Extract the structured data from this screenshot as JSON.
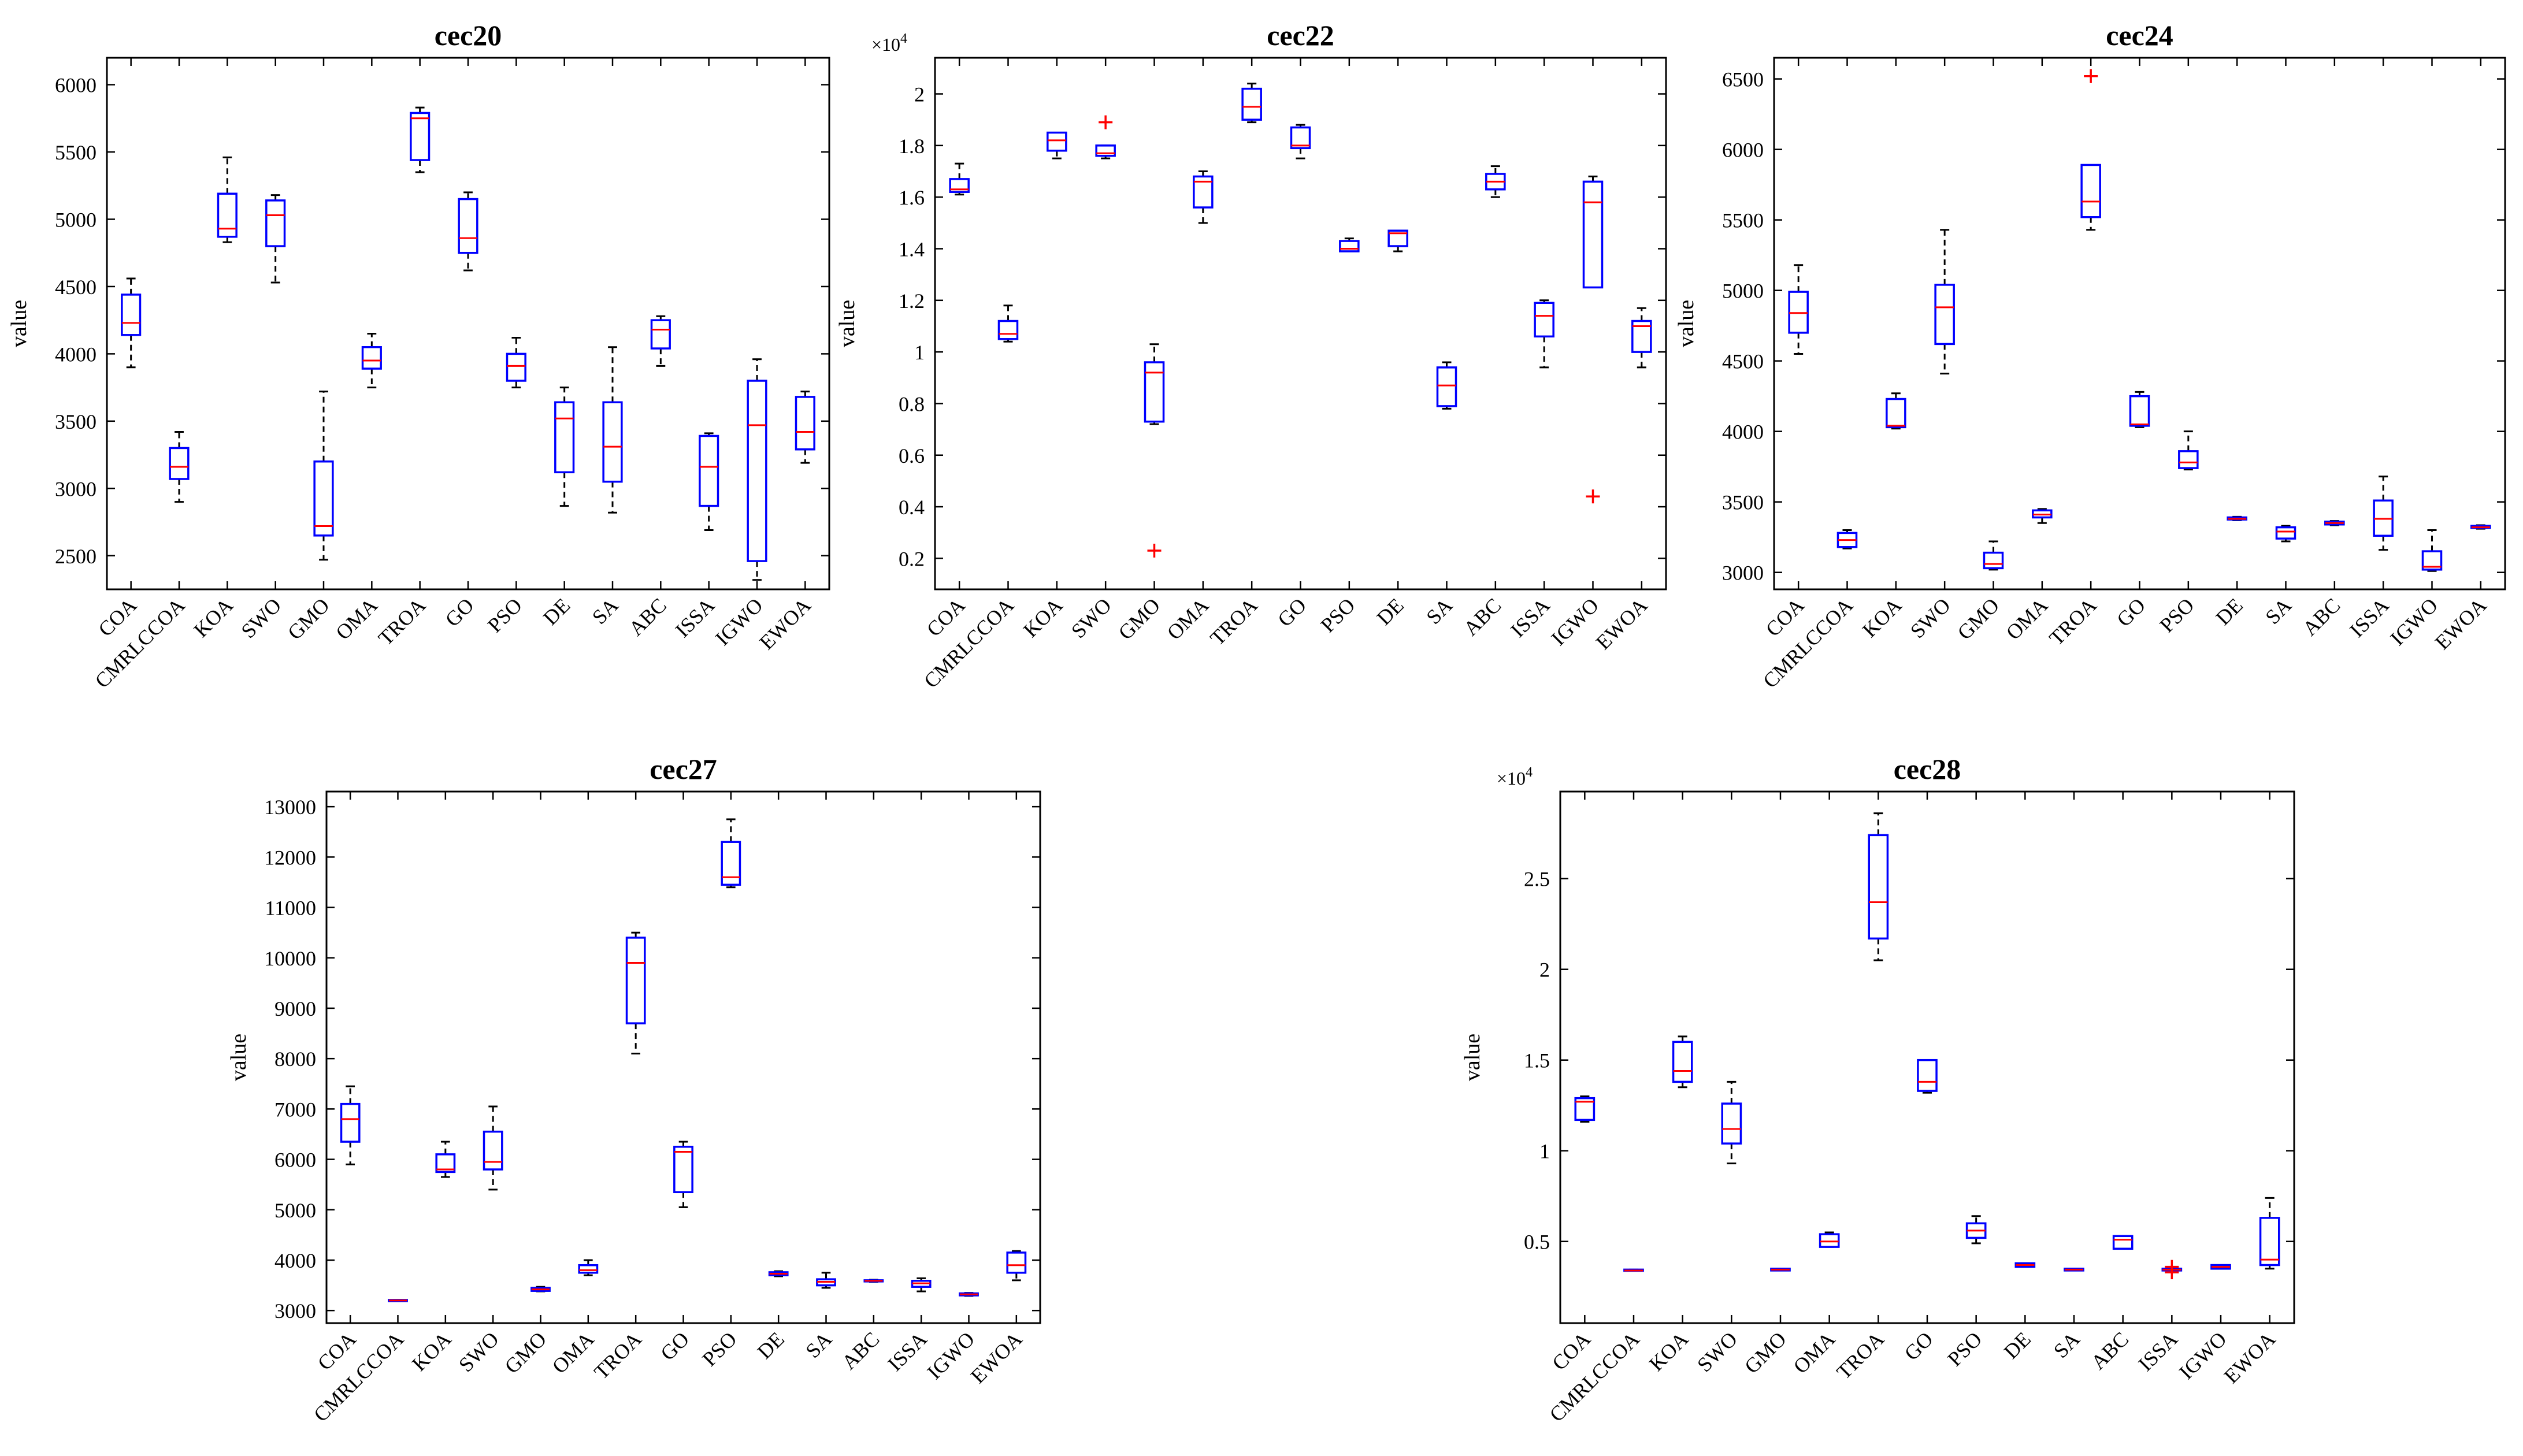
{
  "figure": {
    "ylabel": "value",
    "exponent_label": "×10",
    "exponent_power": "4"
  },
  "colors": {
    "box": "#0000ff",
    "median": "#ff0000",
    "whisker": "#000000",
    "outlier": "#ff0000",
    "axis": "#000000"
  },
  "chart_data": [
    {
      "type": "box",
      "title": "cec20",
      "ylabel": "value",
      "ylim": [
        2250,
        6200
      ],
      "yticks": [
        2500,
        3000,
        3500,
        4000,
        4500,
        5000,
        5500,
        6000
      ],
      "ytick_labels": [
        "2500",
        "3000",
        "3500",
        "4000",
        "4500",
        "5000",
        "5500",
        "6000"
      ],
      "scale_label": "",
      "categories": [
        "COA",
        "CMRLCCOA",
        "KOA",
        "SWO",
        "GMO",
        "OMA",
        "TROA",
        "GO",
        "PSO",
        "DE",
        "SA",
        "ABC",
        "ISSA",
        "IGWO",
        "EWOA"
      ],
      "boxes": [
        {
          "min": 3900,
          "q1": 4140,
          "median": 4230,
          "q3": 4440,
          "max": 4560,
          "outliers": []
        },
        {
          "min": 2900,
          "q1": 3070,
          "median": 3160,
          "q3": 3300,
          "max": 3420,
          "outliers": []
        },
        {
          "min": 4830,
          "q1": 4870,
          "median": 4930,
          "q3": 5190,
          "max": 5460,
          "outliers": []
        },
        {
          "min": 4530,
          "q1": 4800,
          "median": 5030,
          "q3": 5140,
          "max": 5180,
          "outliers": []
        },
        {
          "min": 2470,
          "q1": 2650,
          "median": 2720,
          "q3": 3200,
          "max": 3720,
          "outliers": []
        },
        {
          "min": 3750,
          "q1": 3890,
          "median": 3950,
          "q3": 4050,
          "max": 4150,
          "outliers": []
        },
        {
          "min": 5350,
          "q1": 5440,
          "median": 5750,
          "q3": 5790,
          "max": 5830,
          "outliers": []
        },
        {
          "min": 4620,
          "q1": 4750,
          "median": 4860,
          "q3": 5150,
          "max": 5200,
          "outliers": []
        },
        {
          "min": 3750,
          "q1": 3800,
          "median": 3910,
          "q3": 4000,
          "max": 4120,
          "outliers": []
        },
        {
          "min": 2870,
          "q1": 3120,
          "median": 3520,
          "q3": 3640,
          "max": 3750,
          "outliers": []
        },
        {
          "min": 2820,
          "q1": 3050,
          "median": 3310,
          "q3": 3640,
          "max": 4050,
          "outliers": []
        },
        {
          "min": 3910,
          "q1": 4040,
          "median": 4180,
          "q3": 4250,
          "max": 4280,
          "outliers": []
        },
        {
          "min": 2690,
          "q1": 2870,
          "median": 3160,
          "q3": 3390,
          "max": 3410,
          "outliers": []
        },
        {
          "min": 2320,
          "q1": 2460,
          "median": 3470,
          "q3": 3800,
          "max": 3960,
          "outliers": []
        },
        {
          "min": 3190,
          "q1": 3290,
          "median": 3420,
          "q3": 3680,
          "max": 3720,
          "outliers": []
        }
      ]
    },
    {
      "type": "box",
      "title": "cec22",
      "ylabel": "value",
      "ylim": [
        0.08,
        2.14
      ],
      "yticks": [
        0.2,
        0.4,
        0.6,
        0.8,
        1.0,
        1.2,
        1.4,
        1.6,
        1.8,
        2.0
      ],
      "ytick_labels": [
        "0.2",
        "0.4",
        "0.6",
        "0.8",
        "1",
        "1.2",
        "1.4",
        "1.6",
        "1.8",
        "2"
      ],
      "scale_label": "×10^4",
      "categories": [
        "COA",
        "CMRLCCOA",
        "KOA",
        "SWO",
        "GMO",
        "OMA",
        "TROA",
        "GO",
        "PSO",
        "DE",
        "SA",
        "ABC",
        "ISSA",
        "IGWO",
        "EWOA"
      ],
      "boxes": [
        {
          "min": 1.61,
          "q1": 1.62,
          "median": 1.63,
          "q3": 1.67,
          "max": 1.73,
          "outliers": []
        },
        {
          "min": 1.04,
          "q1": 1.05,
          "median": 1.07,
          "q3": 1.12,
          "max": 1.18,
          "outliers": []
        },
        {
          "min": 1.75,
          "q1": 1.78,
          "median": 1.82,
          "q3": 1.85,
          "max": 1.85,
          "outliers": []
        },
        {
          "min": 1.75,
          "q1": 1.76,
          "median": 1.77,
          "q3": 1.8,
          "max": 1.8,
          "outliers": [
            1.89
          ]
        },
        {
          "min": 0.72,
          "q1": 0.73,
          "median": 0.92,
          "q3": 0.96,
          "max": 1.03,
          "outliers": [
            0.23
          ]
        },
        {
          "min": 1.5,
          "q1": 1.56,
          "median": 1.66,
          "q3": 1.68,
          "max": 1.7,
          "outliers": []
        },
        {
          "min": 1.89,
          "q1": 1.9,
          "median": 1.95,
          "q3": 2.02,
          "max": 2.04,
          "outliers": []
        },
        {
          "min": 1.75,
          "q1": 1.79,
          "median": 1.8,
          "q3": 1.87,
          "max": 1.88,
          "outliers": []
        },
        {
          "min": 1.39,
          "q1": 1.39,
          "median": 1.4,
          "q3": 1.43,
          "max": 1.44,
          "outliers": []
        },
        {
          "min": 1.39,
          "q1": 1.41,
          "median": 1.46,
          "q3": 1.47,
          "max": 1.47,
          "outliers": []
        },
        {
          "min": 0.78,
          "q1": 0.79,
          "median": 0.87,
          "q3": 0.94,
          "max": 0.96,
          "outliers": []
        },
        {
          "min": 1.6,
          "q1": 1.63,
          "median": 1.66,
          "q3": 1.69,
          "max": 1.72,
          "outliers": []
        },
        {
          "min": 0.94,
          "q1": 1.06,
          "median": 1.14,
          "q3": 1.19,
          "max": 1.2,
          "outliers": []
        },
        {
          "min": 1.25,
          "q1": 1.25,
          "median": 1.58,
          "q3": 1.66,
          "max": 1.68,
          "outliers": [
            0.44
          ]
        },
        {
          "min": 0.94,
          "q1": 1.0,
          "median": 1.1,
          "q3": 1.12,
          "max": 1.17,
          "outliers": []
        }
      ]
    },
    {
      "type": "box",
      "title": "cec24",
      "ylabel": "value",
      "ylim": [
        2880,
        6650
      ],
      "yticks": [
        3000,
        3500,
        4000,
        4500,
        5000,
        5500,
        6000,
        6500
      ],
      "ytick_labels": [
        "3000",
        "3500",
        "4000",
        "4500",
        "5000",
        "5500",
        "6000",
        "6500"
      ],
      "scale_label": "",
      "categories": [
        "COA",
        "CMRLCCOA",
        "KOA",
        "SWO",
        "GMO",
        "OMA",
        "TROA",
        "GO",
        "PSO",
        "DE",
        "SA",
        "ABC",
        "ISSA",
        "IGWO",
        "EWOA"
      ],
      "boxes": [
        {
          "min": 4550,
          "q1": 4700,
          "median": 4840,
          "q3": 4990,
          "max": 5180,
          "outliers": []
        },
        {
          "min": 3170,
          "q1": 3180,
          "median": 3230,
          "q3": 3280,
          "max": 3300,
          "outliers": []
        },
        {
          "min": 4020,
          "q1": 4030,
          "median": 4040,
          "q3": 4230,
          "max": 4270,
          "outliers": []
        },
        {
          "min": 4410,
          "q1": 4620,
          "median": 4880,
          "q3": 5040,
          "max": 5430,
          "outliers": []
        },
        {
          "min": 3020,
          "q1": 3030,
          "median": 3060,
          "q3": 3140,
          "max": 3220,
          "outliers": []
        },
        {
          "min": 3350,
          "q1": 3390,
          "median": 3410,
          "q3": 3440,
          "max": 3450,
          "outliers": []
        },
        {
          "min": 5430,
          "q1": 5520,
          "median": 5630,
          "q3": 5890,
          "max": 5890,
          "outliers": [
            6520
          ]
        },
        {
          "min": 4030,
          "q1": 4040,
          "median": 4050,
          "q3": 4250,
          "max": 4280,
          "outliers": []
        },
        {
          "min": 3730,
          "q1": 3740,
          "median": 3780,
          "q3": 3860,
          "max": 4000,
          "outliers": []
        },
        {
          "min": 3370,
          "q1": 3375,
          "median": 3380,
          "q3": 3390,
          "max": 3395,
          "outliers": []
        },
        {
          "min": 3220,
          "q1": 3240,
          "median": 3290,
          "q3": 3320,
          "max": 3330,
          "outliers": []
        },
        {
          "min": 3335,
          "q1": 3340,
          "median": 3350,
          "q3": 3360,
          "max": 3365,
          "outliers": []
        },
        {
          "min": 3160,
          "q1": 3260,
          "median": 3380,
          "q3": 3510,
          "max": 3680,
          "outliers": []
        },
        {
          "min": 3010,
          "q1": 3020,
          "median": 3040,
          "q3": 3150,
          "max": 3300,
          "outliers": []
        },
        {
          "min": 3310,
          "q1": 3315,
          "median": 3320,
          "q3": 3330,
          "max": 3335,
          "outliers": []
        }
      ]
    },
    {
      "type": "box",
      "title": "cec27",
      "ylabel": "value",
      "ylim": [
        2750,
        13300
      ],
      "yticks": [
        3000,
        4000,
        5000,
        6000,
        7000,
        8000,
        9000,
        10000,
        11000,
        12000,
        13000
      ],
      "ytick_labels": [
        "3000",
        "4000",
        "5000",
        "6000",
        "7000",
        "8000",
        "9000",
        "10000",
        "11000",
        "12000",
        "13000"
      ],
      "scale_label": "",
      "categories": [
        "COA",
        "CMRLCCOA",
        "KOA",
        "SWO",
        "GMO",
        "OMA",
        "TROA",
        "GO",
        "PSO",
        "DE",
        "SA",
        "ABC",
        "ISSA",
        "IGWO",
        "EWOA"
      ],
      "boxes": [
        {
          "min": 5900,
          "q1": 6350,
          "median": 6800,
          "q3": 7100,
          "max": 7450,
          "outliers": []
        },
        {
          "min": 3200,
          "q1": 3200,
          "median": 3200,
          "q3": 3210,
          "max": 3210,
          "outliers": []
        },
        {
          "min": 5650,
          "q1": 5750,
          "median": 5800,
          "q3": 6100,
          "max": 6350,
          "outliers": []
        },
        {
          "min": 5400,
          "q1": 5800,
          "median": 5950,
          "q3": 6550,
          "max": 7050,
          "outliers": []
        },
        {
          "min": 3380,
          "q1": 3390,
          "median": 3420,
          "q3": 3450,
          "max": 3470,
          "outliers": []
        },
        {
          "min": 3700,
          "q1": 3750,
          "median": 3800,
          "q3": 3900,
          "max": 4000,
          "outliers": []
        },
        {
          "min": 8100,
          "q1": 8700,
          "median": 9900,
          "q3": 10400,
          "max": 10500,
          "outliers": []
        },
        {
          "min": 5050,
          "q1": 5350,
          "median": 6150,
          "q3": 6250,
          "max": 6350,
          "outliers": []
        },
        {
          "min": 11400,
          "q1": 11450,
          "median": 11600,
          "q3": 12300,
          "max": 12750,
          "outliers": []
        },
        {
          "min": 3680,
          "q1": 3700,
          "median": 3730,
          "q3": 3760,
          "max": 3780,
          "outliers": []
        },
        {
          "min": 3450,
          "q1": 3500,
          "median": 3570,
          "q3": 3620,
          "max": 3750,
          "outliers": []
        },
        {
          "min": 3570,
          "q1": 3580,
          "median": 3590,
          "q3": 3600,
          "max": 3610,
          "outliers": []
        },
        {
          "min": 3380,
          "q1": 3470,
          "median": 3540,
          "q3": 3590,
          "max": 3640,
          "outliers": []
        },
        {
          "min": 3290,
          "q1": 3300,
          "median": 3320,
          "q3": 3340,
          "max": 3350,
          "outliers": []
        },
        {
          "min": 3600,
          "q1": 3750,
          "median": 3900,
          "q3": 4150,
          "max": 4180,
          "outliers": []
        }
      ]
    },
    {
      "type": "box",
      "title": "cec28",
      "ylabel": "value",
      "ylim": [
        0.05,
        2.98
      ],
      "yticks": [
        0.5,
        1.0,
        1.5,
        2.0,
        2.5
      ],
      "ytick_labels": [
        "0.5",
        "1",
        "1.5",
        "2",
        "2.5"
      ],
      "scale_label": "×10^4",
      "categories": [
        "COA",
        "CMRLCCOA",
        "KOA",
        "SWO",
        "GMO",
        "OMA",
        "TROA",
        "GO",
        "PSO",
        "DE",
        "SA",
        "ABC",
        "ISSA",
        "IGWO",
        "EWOA"
      ],
      "boxes": [
        {
          "min": 1.16,
          "q1": 1.17,
          "median": 1.27,
          "q3": 1.29,
          "max": 1.3,
          "outliers": []
        },
        {
          "min": 0.34,
          "q1": 0.34,
          "median": 0.34,
          "q3": 0.345,
          "max": 0.345,
          "outliers": []
        },
        {
          "min": 1.35,
          "q1": 1.38,
          "median": 1.44,
          "q3": 1.6,
          "max": 1.63,
          "outliers": []
        },
        {
          "min": 0.93,
          "q1": 1.04,
          "median": 1.12,
          "q3": 1.26,
          "max": 1.38,
          "outliers": []
        },
        {
          "min": 0.34,
          "q1": 0.34,
          "median": 0.345,
          "q3": 0.35,
          "max": 0.35,
          "outliers": []
        },
        {
          "min": 0.47,
          "q1": 0.47,
          "median": 0.5,
          "q3": 0.54,
          "max": 0.55,
          "outliers": []
        },
        {
          "min": 2.05,
          "q1": 2.17,
          "median": 2.37,
          "q3": 2.74,
          "max": 2.86,
          "outliers": []
        },
        {
          "min": 1.32,
          "q1": 1.33,
          "median": 1.38,
          "q3": 1.5,
          "max": 1.5,
          "outliers": []
        },
        {
          "min": 0.49,
          "q1": 0.52,
          "median": 0.56,
          "q3": 0.6,
          "max": 0.64,
          "outliers": []
        },
        {
          "min": 0.36,
          "q1": 0.36,
          "median": 0.37,
          "q3": 0.38,
          "max": 0.38,
          "outliers": []
        },
        {
          "min": 0.34,
          "q1": 0.34,
          "median": 0.345,
          "q3": 0.35,
          "max": 0.35,
          "outliers": []
        },
        {
          "min": 0.46,
          "q1": 0.46,
          "median": 0.51,
          "q3": 0.53,
          "max": 0.53,
          "outliers": []
        },
        {
          "min": 0.34,
          "q1": 0.34,
          "median": 0.345,
          "q3": 0.35,
          "max": 0.35,
          "outliers": [
            0.33,
            0.36
          ]
        },
        {
          "min": 0.35,
          "q1": 0.35,
          "median": 0.36,
          "q3": 0.37,
          "max": 0.37,
          "outliers": []
        },
        {
          "min": 0.35,
          "q1": 0.37,
          "median": 0.4,
          "q3": 0.63,
          "max": 0.74,
          "outliers": []
        }
      ]
    }
  ]
}
